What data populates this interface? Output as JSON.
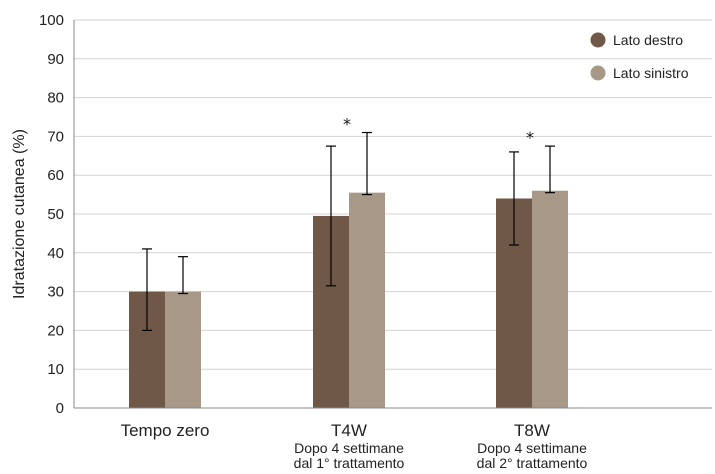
{
  "chart_data": {
    "type": "bar",
    "ylabel": "Idratazione cutanea (%)",
    "xlabel": "",
    "ylim": [
      0,
      100
    ],
    "yticks": [
      0,
      10,
      20,
      30,
      40,
      50,
      60,
      70,
      80,
      90,
      100
    ],
    "grid": true,
    "legend_position": "top-right",
    "categories": [
      {
        "label": "Tempo zero",
        "sublabel": [
          "",
          ""
        ],
        "significance": ""
      },
      {
        "label": "T4W",
        "sublabel": [
          "Dopo 4 settimane",
          "dal 1° trattamento"
        ],
        "significance": "*"
      },
      {
        "label": "T8W",
        "sublabel": [
          "Dopo 4 settimane",
          "dal 2° trattamento"
        ],
        "significance": "*"
      }
    ],
    "series": [
      {
        "name": "Lato destro",
        "color": "#6f5848",
        "values": [
          30,
          49.5,
          54
        ],
        "error_low": [
          20,
          31.5,
          42
        ],
        "error_high": [
          41,
          67.5,
          66
        ]
      },
      {
        "name": "Lato sinistro",
        "color": "#a89888",
        "values": [
          30,
          55.5,
          56
        ],
        "error_low": [
          29.5,
          55,
          55.5
        ],
        "error_high": [
          39,
          71,
          67.5
        ]
      }
    ]
  }
}
